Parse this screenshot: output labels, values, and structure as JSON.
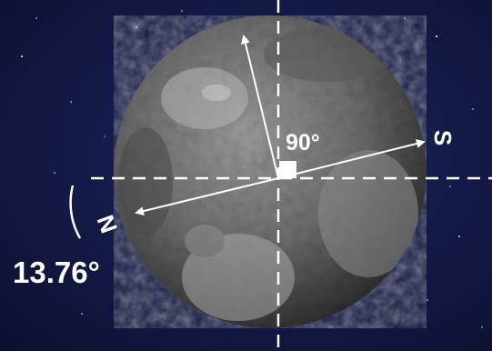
{
  "labels": {
    "right_angle": "90°",
    "tilt_angle": "13.76°",
    "pole_south": "S",
    "pole_north": "N"
  },
  "colors": {
    "space": "#141a46",
    "planet_light": "#9a9a9a",
    "planet_dark": "#3a3a3a",
    "lines": "#ffffff"
  }
}
